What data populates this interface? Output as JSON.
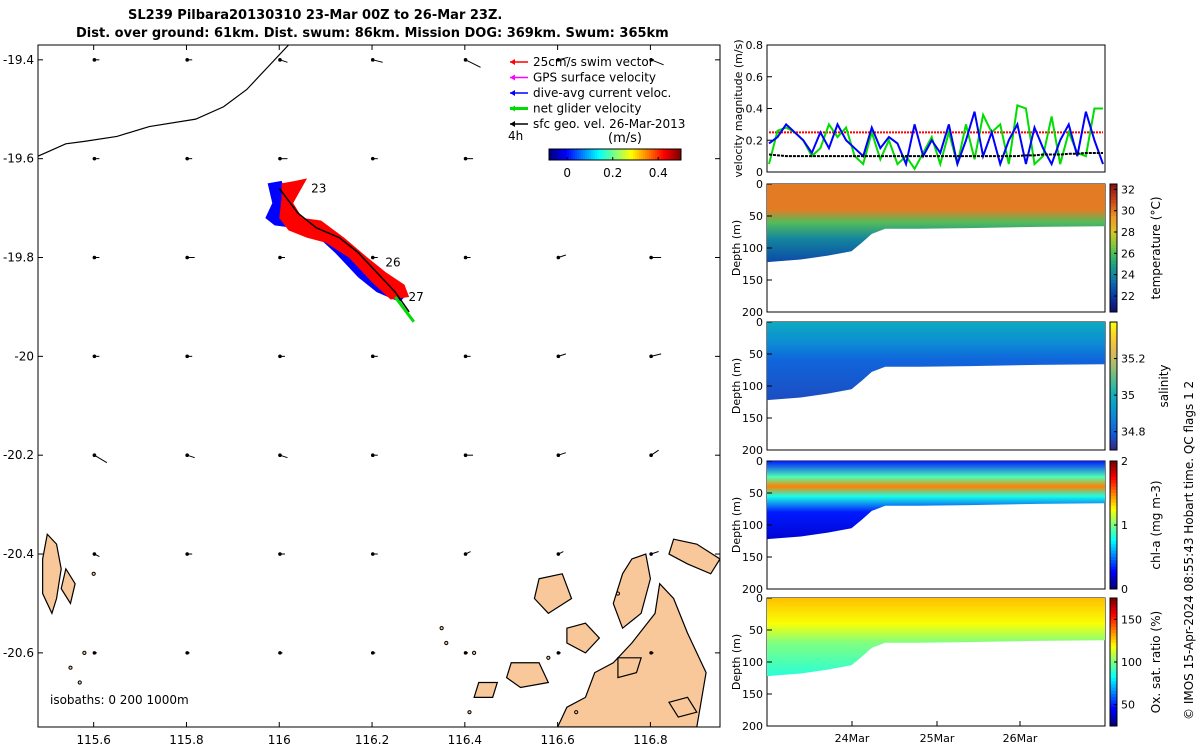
{
  "header": {
    "title_line1": "SL239 Pilbara20130310 23-Mar 00Z to 26-Mar 23Z.",
    "title_line2": "Dist. over ground: 61km. Dist. swum: 86km. Mission DOG: 369km. Swum: 365km"
  },
  "side_note": "© IMOS 15-Apr-2024 08:55:43 Hobart time. QC flags 1  2",
  "colors": {
    "swim_vector": "#ff0000",
    "gps_velocity": "#ff00ff",
    "dive_avg_current": "#0000ff",
    "net_glider_velocity": "#00dd00",
    "sfc_geo_velocity": "#000000",
    "land": "#f8c89a"
  },
  "chart_data": [
    {
      "type": "map",
      "xlim": [
        115.48,
        116.95
      ],
      "ylim": [
        -20.75,
        -19.37
      ],
      "xticks": [
        "115.6",
        "115.8",
        "116",
        "116.2",
        "116.4",
        "116.6",
        "116.8"
      ],
      "xtick_values": [
        115.6,
        115.8,
        116.0,
        116.2,
        116.4,
        116.6,
        116.8
      ],
      "yticks": [
        "-19.4",
        "-19.6",
        "-19.8",
        "-20",
        "-20.2",
        "-20.4",
        "-20.6"
      ],
      "ytick_values": [
        -19.4,
        -19.6,
        -19.8,
        -20.0,
        -20.2,
        -20.4,
        -20.6
      ],
      "legend": {
        "placement": "top-right",
        "entries": [
          "25cm/s swim vector",
          "GPS surface velocity",
          "dive-avg current veloc.",
          "net glider velocity",
          "sfc geo. vel. 26-Mar-2013"
        ]
      },
      "colorbar": {
        "label_4h": "4h",
        "unit": "(m/s)",
        "ticks": [
          "0",
          "0.2",
          "0.4"
        ],
        "tick_values": [
          0,
          0.2,
          0.4
        ],
        "range": [
          -0.08,
          0.5
        ]
      },
      "isobath_note": "isobaths: 0   200  1000m",
      "day_labels": [
        {
          "text": "23",
          "lon": 116.06,
          "lat": -19.66
        },
        {
          "text": "26",
          "lon": 116.22,
          "lat": -19.81
        },
        {
          "text": "27",
          "lon": 116.27,
          "lat": -19.88
        }
      ],
      "glider_track": [
        [
          116.0,
          -19.66
        ],
        [
          116.04,
          -19.71
        ],
        [
          116.08,
          -19.74
        ],
        [
          116.13,
          -19.76
        ],
        [
          116.17,
          -19.79
        ],
        [
          116.21,
          -19.83
        ],
        [
          116.25,
          -19.87
        ],
        [
          116.28,
          -19.91
        ]
      ],
      "bathymetry_200m": [
        [
          115.48,
          -19.595
        ],
        [
          115.54,
          -19.57
        ],
        [
          115.58,
          -19.565
        ],
        [
          115.65,
          -19.555
        ],
        [
          115.72,
          -19.535
        ],
        [
          115.82,
          -19.52
        ],
        [
          115.88,
          -19.495
        ],
        [
          115.93,
          -19.46
        ],
        [
          115.98,
          -19.41
        ],
        [
          116.02,
          -19.37
        ]
      ],
      "sfc_velocity_grid": {
        "lons": [
          115.58,
          115.78,
          115.98,
          116.18,
          116.38,
          116.58,
          116.78
        ],
        "lats": [
          -19.4,
          -19.6,
          -19.8,
          -20.0,
          -20.2,
          -20.4,
          -20.6
        ],
        "u_v_kmh": [
          [
            [
              0.2,
              0
            ],
            [
              0.2,
              0
            ],
            [
              0.3,
              -0.1
            ],
            [
              0.4,
              -0.1
            ],
            [
              0.6,
              -0.3
            ],
            [
              0.4,
              0.1
            ],
            [
              0.5,
              -0.2
            ]
          ],
          [
            [
              0.2,
              0
            ],
            [
              0.2,
              0
            ],
            [
              0.3,
              0
            ],
            [
              0.2,
              0
            ],
            [
              0.3,
              0
            ],
            [
              0.1,
              0
            ],
            [
              0.3,
              0.1
            ]
          ],
          [
            [
              0.2,
              0
            ],
            [
              0.3,
              0
            ],
            [
              0.2,
              0
            ],
            [
              0.2,
              0
            ],
            [
              0.2,
              0
            ],
            [
              0.3,
              0.1
            ],
            [
              0.4,
              0
            ]
          ],
          [
            [
              0.2,
              0
            ],
            [
              0.2,
              0
            ],
            [
              0.2,
              0
            ],
            [
              0.2,
              0
            ],
            [
              0.2,
              0
            ],
            [
              0.3,
              0.1
            ],
            [
              0.4,
              0.1
            ]
          ],
          [
            [
              0.5,
              -0.3
            ],
            [
              0.3,
              -0.1
            ],
            [
              0.3,
              -0.1
            ],
            [
              0.2,
              0
            ],
            [
              0.3,
              0
            ],
            [
              0.3,
              0.1
            ],
            [
              0.3,
              0.2
            ]
          ],
          [
            [
              0.2,
              -0.1
            ],
            [
              0.2,
              0
            ],
            [
              0.2,
              0
            ],
            [
              0.2,
              0
            ],
            [
              0.2,
              0.1
            ],
            [
              0.2,
              0.1
            ],
            [
              0.3,
              0.1
            ]
          ],
          [
            [
              0.1,
              0
            ],
            [
              0.1,
              0
            ],
            [
              0.1,
              0
            ],
            [
              0.1,
              0
            ],
            [
              0.1,
              0
            ],
            [
              0.1,
              0
            ],
            [
              0.1,
              0
            ]
          ]
        ]
      }
    },
    {
      "type": "line",
      "ylabel": "velocity magnitude (m/s)",
      "ylim": [
        0,
        0.8
      ],
      "yticks": [
        "0",
        "0.2",
        "0.4",
        "0.6",
        "0.8"
      ],
      "tick_values": [
        0,
        0.2,
        0.4,
        0.6,
        0.8
      ],
      "series": [
        {
          "color": "#ff0000",
          "values": [
            0.25,
            0.25,
            0.25,
            0.25,
            0.25,
            0.25,
            0.25,
            0.25,
            0.25,
            0.25,
            0.25,
            0.25,
            0.25,
            0.25,
            0.25,
            0.25,
            0.25,
            0.25,
            0.25,
            0.25,
            0.25,
            0.25,
            0.25,
            0.25,
            0.25,
            0.25,
            0.25,
            0.25,
            0.25,
            0.25,
            0.25,
            0.25,
            0.25,
            0.25,
            0.25,
            0.25,
            0.25,
            0.25,
            0.25,
            0.25
          ]
        },
        {
          "color": "#00dd00",
          "values": [
            0.05,
            0.26,
            0.28,
            0.25,
            0.2,
            0.1,
            0.15,
            0.3,
            0.22,
            0.28,
            0.1,
            0.05,
            0.25,
            0.08,
            0.2,
            0.05,
            0.1,
            0.02,
            0.12,
            0.22,
            0.05,
            0.25,
            0.05,
            0.3,
            0.08,
            0.36,
            0.25,
            0.3,
            0.05,
            0.42,
            0.4,
            0.05,
            0.1,
            0.35,
            0.05,
            0.25,
            0.12,
            0.1,
            0.4,
            0.4
          ]
        },
        {
          "color": "#0000ff",
          "values": [
            0.18,
            0.22,
            0.3,
            0.25,
            0.2,
            0.12,
            0.25,
            0.15,
            0.3,
            0.2,
            0.15,
            0.1,
            0.28,
            0.15,
            0.22,
            0.18,
            0.05,
            0.3,
            0.1,
            0.2,
            0.12,
            0.3,
            0.05,
            0.2,
            0.38,
            0.1,
            0.25,
            0.05,
            0.2,
            0.3,
            0.05,
            0.28,
            0.15,
            0.05,
            0.2,
            0.3,
            0.1,
            0.38,
            0.2,
            0.05
          ]
        },
        {
          "color": "#000000",
          "values": [
            0.11,
            0.105,
            0.1,
            0.1,
            0.1,
            0.1,
            0.1,
            0.1,
            0.1,
            0.1,
            0.1,
            0.1,
            0.1,
            0.1,
            0.1,
            0.1,
            0.1,
            0.1,
            0.1,
            0.1,
            0.1,
            0.1,
            0.1,
            0.1,
            0.1,
            0.1,
            0.1,
            0.1,
            0.1,
            0.1,
            0.105,
            0.105,
            0.11,
            0.11,
            0.11,
            0.115,
            0.115,
            0.12,
            0.12,
            0.12
          ]
        }
      ]
    },
    {
      "type": "heatmap",
      "variable": "temperature",
      "colorbar_label": "temperature (°C)",
      "clim": [
        20.5,
        32.5
      ],
      "colorbar_ticks": [
        "22",
        "24",
        "26",
        "28",
        "30",
        "32"
      ],
      "colorbar_tick_values": [
        22,
        24,
        26,
        28,
        30,
        32
      ],
      "ylabel": "Depth (m)",
      "ylim": [
        0,
        200
      ],
      "yticks": [
        "0",
        "50",
        "100",
        "150",
        "200"
      ],
      "tick_values": [
        0,
        50,
        100,
        150,
        200
      ],
      "layers": [
        [
          0,
          30
        ],
        [
          40,
          30
        ],
        [
          60,
          26
        ],
        [
          85,
          24
        ],
        [
          130,
          22
        ]
      ]
    },
    {
      "type": "heatmap",
      "variable": "salinity",
      "colorbar_label": "salinity",
      "clim": [
        34.7,
        35.4
      ],
      "colorbar_ticks": [
        "34.8",
        "35",
        "35.2"
      ],
      "colorbar_tick_values": [
        34.8,
        35.0,
        35.2
      ],
      "ylabel": "Depth (m)",
      "ylim": [
        0,
        200
      ],
      "yticks": [
        "0",
        "50",
        "100",
        "150",
        "200"
      ],
      "tick_values": [
        0,
        50,
        100,
        150,
        200
      ],
      "layers": [
        [
          0,
          34.98
        ],
        [
          30,
          34.9
        ],
        [
          60,
          34.8
        ],
        [
          130,
          34.75
        ]
      ]
    },
    {
      "type": "heatmap",
      "variable": "chl-a",
      "colorbar_label": "chl-a (mg m-3)",
      "clim": [
        0,
        2
      ],
      "colorbar_ticks": [
        "0",
        "1",
        "2"
      ],
      "colorbar_tick_values": [
        0,
        1,
        2
      ],
      "ylabel": "Depth (m)",
      "ylim": [
        0,
        200
      ],
      "yticks": [
        "0",
        "50",
        "100",
        "150",
        "200"
      ],
      "tick_values": [
        0,
        50,
        100,
        150,
        200
      ],
      "layers": [
        [
          0,
          0.3
        ],
        [
          25,
          0.9
        ],
        [
          40,
          1.5
        ],
        [
          55,
          0.8
        ],
        [
          80,
          0.3
        ],
        [
          130,
          0.15
        ]
      ]
    },
    {
      "type": "heatmap",
      "variable": "oxygen saturation",
      "colorbar_label": "Ox. sat. ratio (%)",
      "clim": [
        25,
        175
      ],
      "colorbar_ticks": [
        "50",
        "100",
        "150"
      ],
      "colorbar_tick_values": [
        50,
        100,
        150
      ],
      "ylabel": "Depth (m)",
      "ylim": [
        0,
        200
      ],
      "yticks": [
        "0",
        "50",
        "100",
        "150",
        "200"
      ],
      "tick_values": [
        0,
        50,
        100,
        150,
        200
      ],
      "xticks": [
        "24Mar",
        "25Mar",
        "26Mar"
      ],
      "layers": [
        [
          0,
          128
        ],
        [
          40,
          118
        ],
        [
          70,
          100
        ],
        [
          130,
          85
        ]
      ]
    }
  ]
}
